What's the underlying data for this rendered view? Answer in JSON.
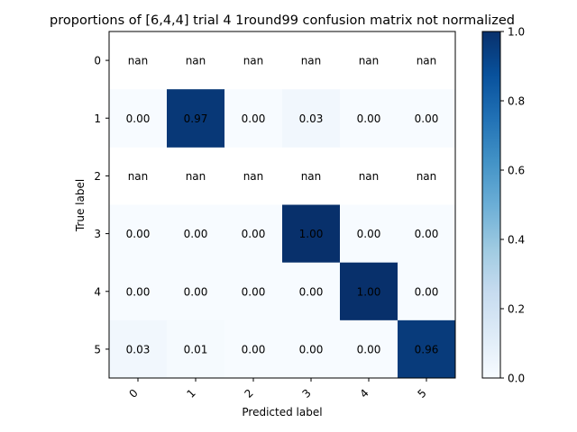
{
  "chart_data": {
    "type": "heatmap",
    "title": "proportions of [6,4,4] trial 4 1round99 confusion matrix not normalized",
    "xlabel": "Predicted label",
    "ylabel": "True label",
    "x_ticks": [
      "0",
      "1",
      "2",
      "3",
      "4",
      "5"
    ],
    "y_ticks": [
      "0",
      "1",
      "2",
      "3",
      "4",
      "5"
    ],
    "values": [
      [
        null,
        null,
        null,
        null,
        null,
        null
      ],
      [
        0.0,
        0.97,
        0.0,
        0.03,
        0.0,
        0.0
      ],
      [
        null,
        null,
        null,
        null,
        null,
        null
      ],
      [
        0.0,
        0.0,
        0.0,
        1.0,
        0.0,
        0.0
      ],
      [
        0.0,
        0.0,
        0.0,
        0.0,
        1.0,
        0.0
      ],
      [
        0.03,
        0.01,
        0.0,
        0.0,
        0.0,
        0.96
      ]
    ],
    "labels": [
      [
        "nan",
        "nan",
        "nan",
        "nan",
        "nan",
        "nan"
      ],
      [
        "0.00",
        "0.97",
        "0.00",
        "0.03",
        "0.00",
        "0.00"
      ],
      [
        "nan",
        "nan",
        "nan",
        "nan",
        "nan",
        "nan"
      ],
      [
        "0.00",
        "0.00",
        "0.00",
        "1.00",
        "0.00",
        "0.00"
      ],
      [
        "0.00",
        "0.00",
        "0.00",
        "0.00",
        "1.00",
        "0.00"
      ],
      [
        "0.03",
        "0.01",
        "0.00",
        "0.00",
        "0.00",
        "0.96"
      ]
    ],
    "colormap": "Blues",
    "color_low": "#f7fbff",
    "color_high": "#08306b",
    "colorbar": {
      "range": [
        0.0,
        1.0
      ],
      "ticks": [
        "0.0",
        "0.2",
        "0.4",
        "0.6",
        "0.8",
        "1.0"
      ]
    }
  }
}
